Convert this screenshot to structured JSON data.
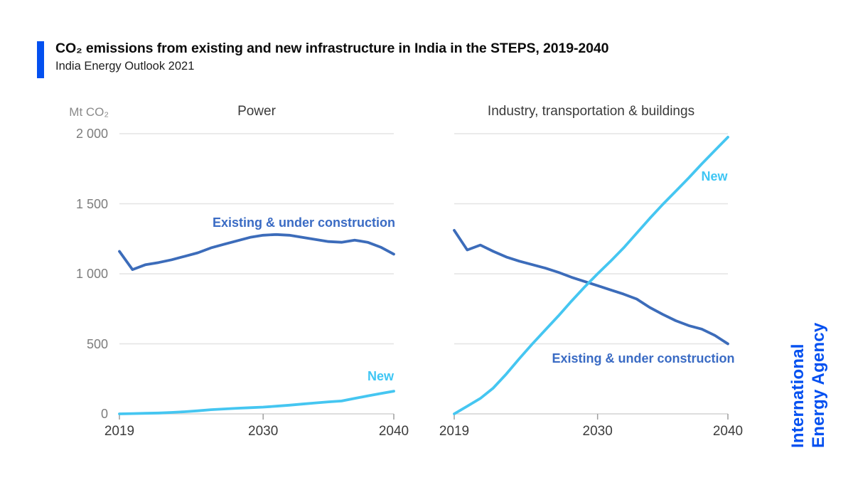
{
  "header": {
    "title": "CO₂ emissions from existing and new infrastructure in India in the STEPS, 2019-2040",
    "subtitle": "India Energy Outlook 2021",
    "accent_color": "#0350f0"
  },
  "axis": {
    "unit": "Mt CO₂"
  },
  "logo": {
    "line1": "International",
    "line2": "Energy Agency",
    "color": "#0350f0"
  },
  "colors": {
    "existing": "#3c6cba",
    "new": "#45c6f1",
    "existing_label": "#3a6bc4",
    "new_label": "#3fc6f4",
    "grid": "#e4e4e4",
    "zero_line": "#d4d4d4",
    "tick": "#9f9f9f",
    "y_text": "#7d7d7d",
    "x_text": "#3c3c3c"
  },
  "chart_data": [
    {
      "type": "line",
      "title": "Power",
      "x": [
        2019,
        2020,
        2021,
        2022,
        2023,
        2024,
        2025,
        2026,
        2027,
        2028,
        2029,
        2030,
        2031,
        2032,
        2033,
        2034,
        2035,
        2036,
        2037,
        2038,
        2039,
        2040
      ],
      "x_ticks": [
        {
          "v": 2019,
          "label": "2019"
        },
        {
          "v": 2030,
          "label": "2030"
        },
        {
          "v": 2040,
          "label": "2040"
        }
      ],
      "ylim": [
        0,
        2000
      ],
      "y_ticks": [
        {
          "v": 0,
          "label": "0"
        },
        {
          "v": 500,
          "label": "500"
        },
        {
          "v": 1000,
          "label": "1 000"
        },
        {
          "v": 1500,
          "label": "1 500"
        },
        {
          "v": 2000,
          "label": "2 000"
        }
      ],
      "show_y_labels": true,
      "series": [
        {
          "name": "Existing & under construction",
          "color_key": "existing",
          "values": [
            1160,
            1030,
            1065,
            1080,
            1100,
            1125,
            1150,
            1185,
            1210,
            1235,
            1260,
            1275,
            1280,
            1275,
            1260,
            1245,
            1230,
            1225,
            1240,
            1225,
            1190,
            1140
          ]
        },
        {
          "name": "New",
          "color_key": "new",
          "values": [
            0,
            2,
            4,
            6,
            10,
            15,
            22,
            30,
            35,
            40,
            44,
            48,
            55,
            62,
            70,
            78,
            86,
            92,
            110,
            128,
            145,
            162
          ]
        }
      ]
    },
    {
      "type": "line",
      "title": "Industry, transportation & buildings",
      "x": [
        2019,
        2020,
        2021,
        2022,
        2023,
        2024,
        2025,
        2026,
        2027,
        2028,
        2029,
        2030,
        2031,
        2032,
        2033,
        2034,
        2035,
        2036,
        2037,
        2038,
        2039,
        2040
      ],
      "x_ticks": [
        {
          "v": 2019,
          "label": "2019"
        },
        {
          "v": 2030,
          "label": "2030"
        },
        {
          "v": 2040,
          "label": "2040"
        }
      ],
      "ylim": [
        0,
        2000
      ],
      "y_ticks": [
        {
          "v": 0,
          "label": "0"
        },
        {
          "v": 500,
          "label": "500"
        },
        {
          "v": 1000,
          "label": "1 000"
        },
        {
          "v": 1500,
          "label": "1 500"
        },
        {
          "v": 2000,
          "label": "2 000"
        }
      ],
      "show_y_labels": false,
      "series": [
        {
          "name": "Existing & under construction",
          "color_key": "existing",
          "values": [
            1310,
            1170,
            1205,
            1160,
            1120,
            1090,
            1065,
            1040,
            1010,
            975,
            945,
            915,
            885,
            855,
            820,
            760,
            710,
            665,
            630,
            605,
            560,
            500
          ]
        },
        {
          "name": "New",
          "color_key": "new",
          "values": [
            0,
            55,
            110,
            185,
            285,
            395,
            500,
            600,
            700,
            805,
            905,
            1000,
            1090,
            1185,
            1290,
            1395,
            1495,
            1590,
            1685,
            1785,
            1880,
            1975
          ]
        }
      ]
    }
  ]
}
